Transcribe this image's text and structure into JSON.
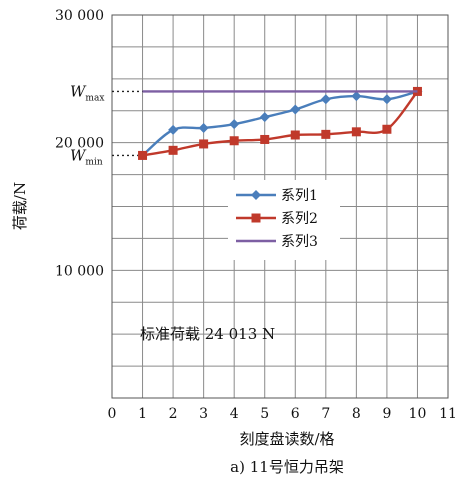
{
  "chart_data": {
    "type": "line",
    "xlabel": "刻度盘读数/格",
    "ylabel": "荷载/N",
    "caption": "a) 11号恒力吊架",
    "xlim": [
      0,
      11
    ],
    "ylim": [
      0,
      30000
    ],
    "x_ticks": [
      "0",
      "1",
      "2",
      "3",
      "4",
      "5",
      "6",
      "7",
      "8",
      "9",
      "10",
      "11"
    ],
    "y_ticks": [
      {
        "value": 10000,
        "label": "10 000"
      },
      {
        "value": 20000,
        "label": "20 000"
      },
      {
        "value": 30000,
        "label": "30 000"
      }
    ],
    "grid": true,
    "legend_position": "center",
    "series": [
      {
        "name": "系列1",
        "color": "#4a7ebb",
        "marker": "diamond",
        "x": [
          1,
          2,
          3,
          4,
          5,
          6,
          7,
          8,
          9,
          10
        ],
        "values": [
          19000,
          21000,
          21150,
          21450,
          22000,
          22600,
          23400,
          23650,
          23400,
          24013
        ]
      },
      {
        "name": "系列2",
        "color": "#c0392b",
        "marker": "square",
        "x": [
          1,
          2,
          3,
          4,
          5,
          6,
          7,
          8,
          9,
          10
        ],
        "values": [
          19000,
          19400,
          19900,
          20150,
          20250,
          20600,
          20650,
          20850,
          21050,
          24013
        ]
      },
      {
        "name": "系列3",
        "color": "#7d5fa3",
        "marker": "none",
        "x": [
          1,
          10
        ],
        "values": [
          24013,
          24013
        ]
      }
    ],
    "reference_lines": [
      {
        "label": "W",
        "subscript": "max",
        "value": 24013
      },
      {
        "label": "W",
        "subscript": "min",
        "value": 19000
      }
    ],
    "annotation": "标准荷载  24 013 N"
  }
}
